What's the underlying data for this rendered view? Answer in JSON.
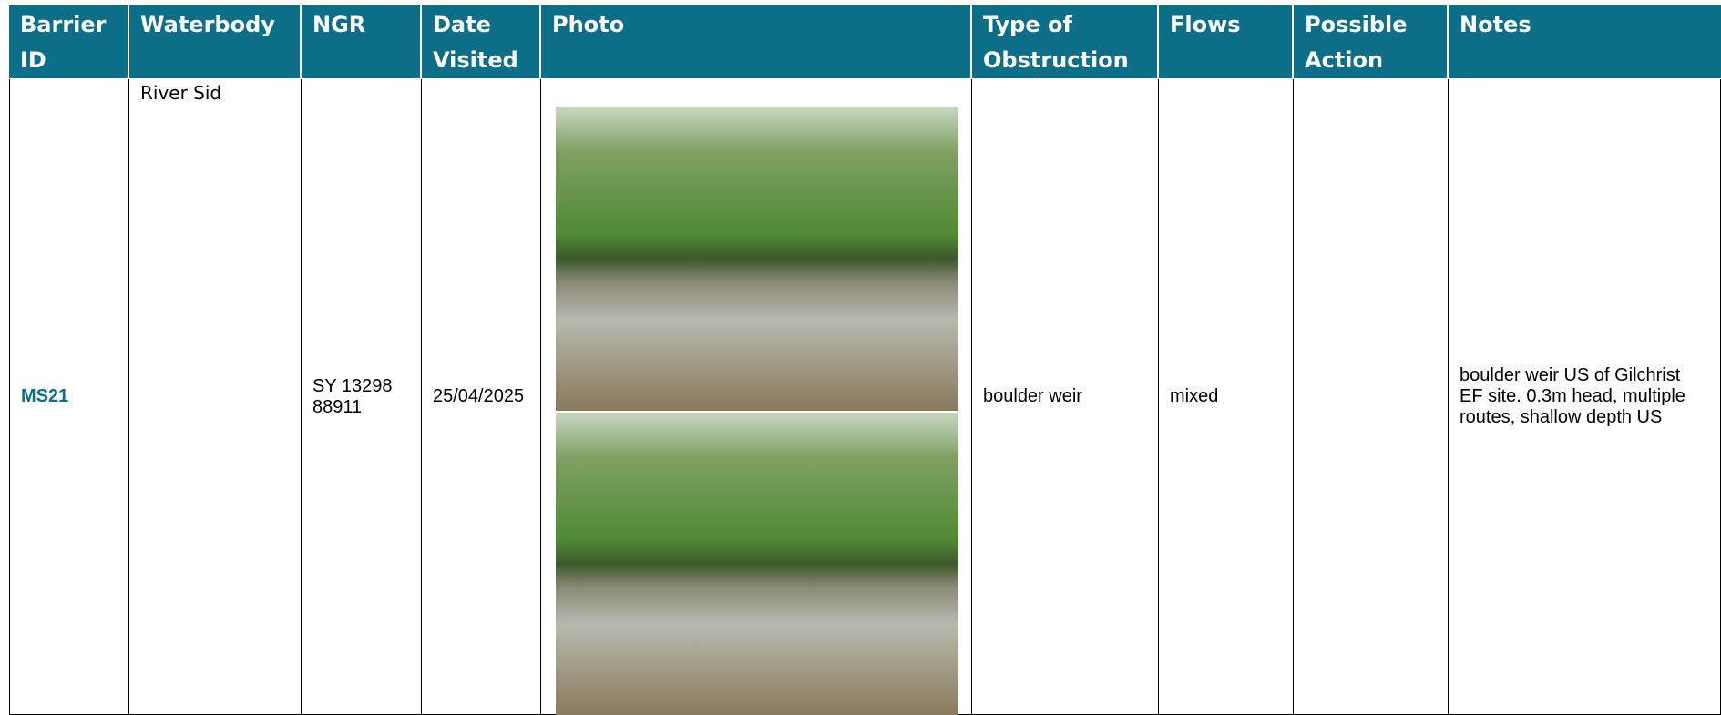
{
  "table": {
    "headers": [
      "Barrier ID",
      "Waterbody",
      "NGR",
      "Date Visited",
      "Photo",
      "Type of Obstruction",
      "Flows",
      "Possible Action",
      "Notes"
    ],
    "rows": [
      {
        "barrier_id": "MS21",
        "waterbody": "River Sid",
        "ngr": "SY 13298 88911",
        "date_visited": "25/04/2025",
        "type_of_obstruction": "boulder weir",
        "flows": "mixed",
        "notes": "boulder weir US of Gilchrist EF site. 0.3m head, multiple routes, shallow depth US"
      }
    ]
  }
}
